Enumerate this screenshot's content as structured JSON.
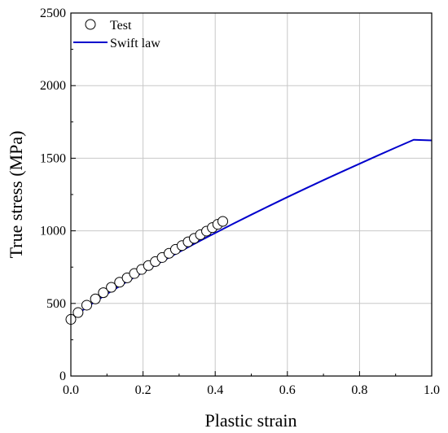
{
  "chart_data": {
    "type": "scatter",
    "title": "",
    "xlabel": "Plastic strain",
    "ylabel": "True stress (MPa)",
    "xlim": [
      0,
      1.0
    ],
    "ylim": [
      0,
      2500
    ],
    "x_ticks": [
      0,
      0.2,
      0.4,
      0.6,
      0.8,
      1.0
    ],
    "x_tick_labels": [
      "0.0",
      "0.2",
      "0.4",
      "0.6",
      "0.8",
      "1.0"
    ],
    "y_ticks": [
      0,
      500,
      1000,
      1500,
      2000,
      2500
    ],
    "y_tick_labels": [
      "0",
      "500",
      "1000",
      "1500",
      "2000",
      "2500"
    ],
    "grid": true,
    "legend_position": "top-left",
    "series": [
      {
        "name": "Test",
        "kind": "scatter",
        "marker": "open-circle",
        "color": "#000000",
        "x": [
          0.0,
          0.02,
          0.044,
          0.068,
          0.09,
          0.112,
          0.135,
          0.156,
          0.176,
          0.196,
          0.215,
          0.234,
          0.253,
          0.272,
          0.29,
          0.308,
          0.325,
          0.342,
          0.359,
          0.376,
          0.392,
          0.407,
          0.421
        ],
        "y": [
          390,
          437,
          488,
          531,
          574,
          611,
          646,
          676,
          706,
          734,
          761,
          788,
          816,
          845,
          872,
          898,
          924,
          948,
          973,
          998,
          1022,
          1045,
          1065
        ]
      },
      {
        "name": "Swift law",
        "kind": "line",
        "color": "#0000cc",
        "x": [
          0.0,
          0.05,
          0.1,
          0.15,
          0.2,
          0.25,
          0.3,
          0.35,
          0.4,
          0.45,
          0.5,
          0.55,
          0.6,
          0.65,
          0.7,
          0.75,
          0.8,
          0.85,
          0.9,
          0.95,
          1.0
        ],
        "y": [
          395,
          484,
          565,
          642,
          715,
          786,
          854,
          921,
          985,
          1049,
          1111,
          1172,
          1232,
          1291,
          1349,
          1406,
          1462,
          1518,
          1573,
          1627,
          1623
        ]
      }
    ]
  }
}
